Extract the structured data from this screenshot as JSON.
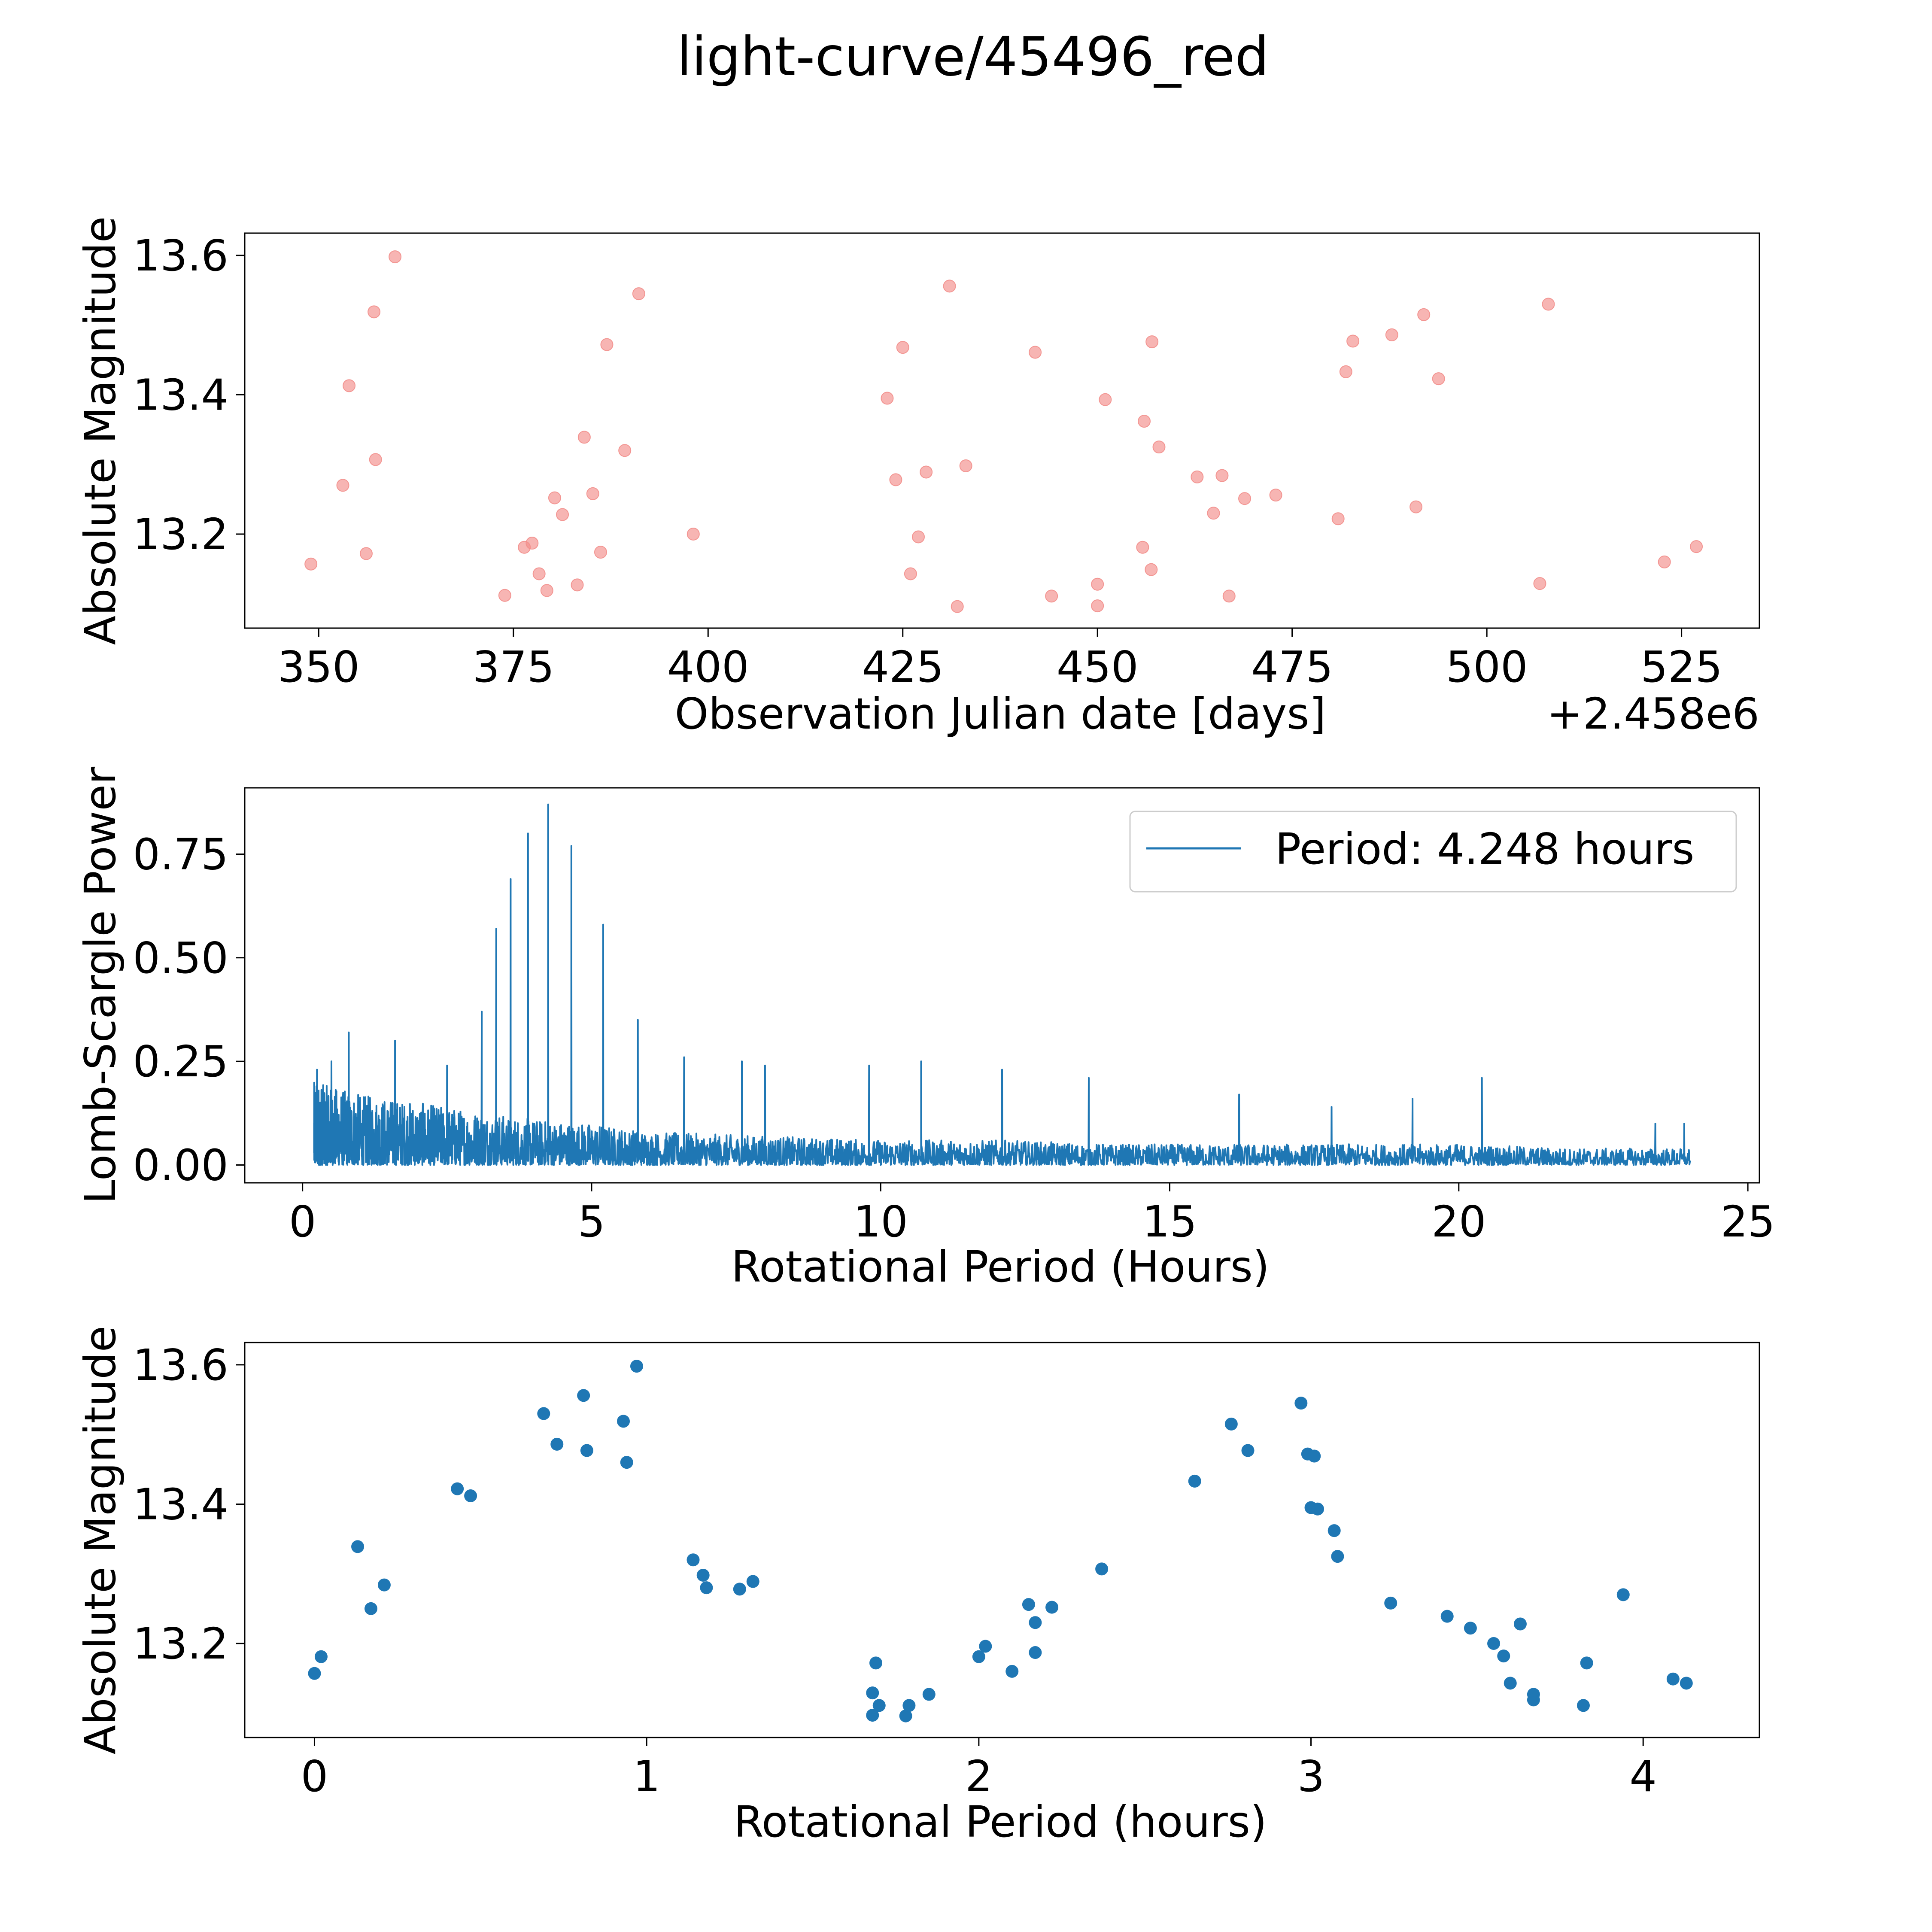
{
  "figure_title": "light-curve/45496_red",
  "chart_data": [
    {
      "type": "scatter",
      "name": "raw-light-curve",
      "xlabel": "Observation Julian date [days]",
      "ylabel": "Absolute Magnitude",
      "x_offset_label": "+2.458e6",
      "xlim": [
        340.5,
        535
      ],
      "ylim": [
        13.065,
        13.632
      ],
      "xticks": [
        350,
        375,
        400,
        425,
        450,
        475,
        500,
        525
      ],
      "yticks": [
        13.2,
        13.4,
        13.6
      ],
      "ytick_labels": [
        "13.2",
        "13.4",
        "13.6"
      ],
      "marker_color": "#f28e8b",
      "marker_alpha": 0.65,
      "points": [
        [
          349.0,
          13.157
        ],
        [
          353.1,
          13.27
        ],
        [
          353.9,
          13.413
        ],
        [
          356.1,
          13.172
        ],
        [
          357.1,
          13.519
        ],
        [
          357.3,
          13.307
        ],
        [
          359.8,
          13.598
        ],
        [
          373.9,
          13.112
        ],
        [
          376.4,
          13.181
        ],
        [
          377.4,
          13.187
        ],
        [
          378.3,
          13.143
        ],
        [
          379.3,
          13.119
        ],
        [
          380.3,
          13.252
        ],
        [
          381.3,
          13.228
        ],
        [
          383.2,
          13.127
        ],
        [
          384.1,
          13.339
        ],
        [
          385.2,
          13.258
        ],
        [
          386.2,
          13.174
        ],
        [
          387.0,
          13.472
        ],
        [
          389.3,
          13.32
        ],
        [
          391.1,
          13.545
        ],
        [
          398.1,
          13.2
        ],
        [
          423.0,
          13.395
        ],
        [
          424.1,
          13.278
        ],
        [
          425.0,
          13.468
        ],
        [
          426.0,
          13.143
        ],
        [
          427.0,
          13.196
        ],
        [
          428.0,
          13.289
        ],
        [
          431.0,
          13.556
        ],
        [
          432.0,
          13.096
        ],
        [
          433.1,
          13.298
        ],
        [
          442.0,
          13.461
        ],
        [
          444.1,
          13.111
        ],
        [
          450.0,
          13.128
        ],
        [
          450.0,
          13.097
        ],
        [
          451.0,
          13.393
        ],
        [
          455.8,
          13.181
        ],
        [
          456.0,
          13.362
        ],
        [
          456.9,
          13.149
        ],
        [
          457.0,
          13.476
        ],
        [
          457.9,
          13.325
        ],
        [
          462.8,
          13.282
        ],
        [
          464.9,
          13.23
        ],
        [
          466.0,
          13.284
        ],
        [
          466.9,
          13.111
        ],
        [
          468.9,
          13.251
        ],
        [
          472.9,
          13.256
        ],
        [
          480.9,
          13.222
        ],
        [
          481.9,
          13.433
        ],
        [
          482.8,
          13.477
        ],
        [
          487.8,
          13.486
        ],
        [
          490.9,
          13.239
        ],
        [
          491.9,
          13.515
        ],
        [
          493.8,
          13.423
        ],
        [
          506.8,
          13.129
        ],
        [
          507.9,
          13.53
        ],
        [
          522.8,
          13.16
        ],
        [
          526.9,
          13.182
        ]
      ]
    },
    {
      "type": "line",
      "name": "lomb-scargle-periodogram",
      "xlabel": "Rotational Period (Hours)",
      "ylabel": "Lomb-Scargle Power",
      "xlim": [
        -1.0,
        25.2
      ],
      "ylim": [
        -0.043,
        0.91
      ],
      "xticks": [
        0,
        5,
        10,
        15,
        20,
        25
      ],
      "yticks": [
        0.0,
        0.25,
        0.5,
        0.75
      ],
      "ytick_labels": [
        "0.00",
        "0.25",
        "0.50",
        "0.75"
      ],
      "line_color": "#1f77b4",
      "legend": "Period: 4.248 hours",
      "legend_loc": "upper right",
      "period_range": [
        0.2,
        24.0
      ],
      "background_envelope": [
        [
          0.2,
          0.2
        ],
        [
          1.0,
          0.17
        ],
        [
          2.0,
          0.15
        ],
        [
          3.0,
          0.13
        ],
        [
          4.0,
          0.11
        ],
        [
          5.0,
          0.1
        ],
        [
          6.0,
          0.08
        ],
        [
          8.0,
          0.07
        ],
        [
          10.0,
          0.06
        ],
        [
          12.0,
          0.06
        ],
        [
          14.0,
          0.05
        ],
        [
          16.0,
          0.05
        ],
        [
          18.0,
          0.05
        ],
        [
          20.0,
          0.05
        ],
        [
          22.0,
          0.04
        ],
        [
          24.0,
          0.04
        ]
      ],
      "peaks": [
        [
          0.25,
          0.23
        ],
        [
          0.5,
          0.25
        ],
        [
          0.8,
          0.32
        ],
        [
          1.6,
          0.3
        ],
        [
          2.5,
          0.24
        ],
        [
          3.1,
          0.37
        ],
        [
          3.35,
          0.57
        ],
        [
          3.6,
          0.69
        ],
        [
          3.9,
          0.8
        ],
        [
          4.248,
          0.87
        ],
        [
          4.65,
          0.77
        ],
        [
          5.2,
          0.58
        ],
        [
          5.8,
          0.35
        ],
        [
          6.6,
          0.26
        ],
        [
          7.6,
          0.25
        ],
        [
          8.0,
          0.24
        ],
        [
          9.8,
          0.24
        ],
        [
          10.7,
          0.25
        ],
        [
          12.1,
          0.23
        ],
        [
          13.6,
          0.21
        ],
        [
          16.2,
          0.17
        ],
        [
          17.8,
          0.14
        ],
        [
          19.2,
          0.16
        ],
        [
          20.4,
          0.21
        ],
        [
          23.4,
          0.1
        ],
        [
          23.9,
          0.1
        ]
      ]
    },
    {
      "type": "scatter",
      "name": "phase-folded-light-curve",
      "xlabel": "Rotational Period (hours)",
      "ylabel": "Absolute Magnitude",
      "xlim": [
        -0.21,
        4.35
      ],
      "ylim": [
        13.065,
        13.632
      ],
      "xticks": [
        0,
        1,
        2,
        3,
        4
      ],
      "yticks": [
        13.2,
        13.4,
        13.6
      ],
      "ytick_labels": [
        "13.2",
        "13.4",
        "13.6"
      ],
      "marker_color": "#1f77b4",
      "points": [
        [
          0.0,
          13.157
        ],
        [
          0.02,
          13.181
        ],
        [
          0.13,
          13.339
        ],
        [
          0.17,
          13.25
        ],
        [
          0.21,
          13.284
        ],
        [
          0.43,
          13.422
        ],
        [
          0.47,
          13.412
        ],
        [
          0.69,
          13.53
        ],
        [
          0.73,
          13.486
        ],
        [
          0.81,
          13.556
        ],
        [
          0.82,
          13.477
        ],
        [
          0.93,
          13.519
        ],
        [
          0.94,
          13.46
        ],
        [
          0.97,
          13.598
        ],
        [
          1.14,
          13.32
        ],
        [
          1.17,
          13.298
        ],
        [
          1.18,
          13.28
        ],
        [
          1.28,
          13.278
        ],
        [
          1.32,
          13.289
        ],
        [
          1.68,
          13.129
        ],
        [
          1.68,
          13.097
        ],
        [
          1.69,
          13.172
        ],
        [
          1.7,
          13.111
        ],
        [
          1.78,
          13.096
        ],
        [
          1.79,
          13.111
        ],
        [
          1.85,
          13.127
        ],
        [
          2.0,
          13.181
        ],
        [
          2.02,
          13.196
        ],
        [
          2.1,
          13.16
        ],
        [
          2.15,
          13.256
        ],
        [
          2.17,
          13.23
        ],
        [
          2.17,
          13.187
        ],
        [
          2.22,
          13.252
        ],
        [
          2.37,
          13.307
        ],
        [
          2.65,
          13.433
        ],
        [
          2.76,
          13.515
        ],
        [
          2.81,
          13.477
        ],
        [
          2.97,
          13.545
        ],
        [
          2.99,
          13.472
        ],
        [
          3.0,
          13.395
        ],
        [
          3.01,
          13.469
        ],
        [
          3.02,
          13.393
        ],
        [
          3.07,
          13.362
        ],
        [
          3.08,
          13.325
        ],
        [
          3.24,
          13.258
        ],
        [
          3.41,
          13.239
        ],
        [
          3.48,
          13.222
        ],
        [
          3.55,
          13.2
        ],
        [
          3.58,
          13.182
        ],
        [
          3.6,
          13.143
        ],
        [
          3.63,
          13.228
        ],
        [
          3.67,
          13.127
        ],
        [
          3.67,
          13.119
        ],
        [
          3.82,
          13.111
        ],
        [
          3.83,
          13.172
        ],
        [
          3.94,
          13.27
        ],
        [
          4.09,
          13.149
        ],
        [
          4.13,
          13.143
        ]
      ]
    }
  ]
}
